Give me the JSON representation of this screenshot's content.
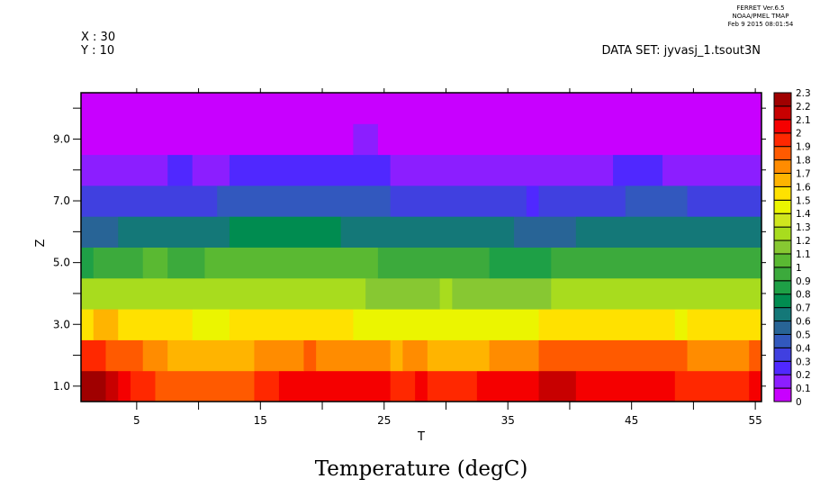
{
  "header": {
    "ferret_version": "FERRET  Ver.6.5",
    "ferret_org": "NOAA/PMEL TMAP",
    "ferret_date": "Feb  9 2015 08:01:54",
    "x_label": "X : 30",
    "y_label": "Y : 10",
    "dataset": "DATA SET: jyvasj_1.tsout3N"
  },
  "chart_data": {
    "type": "heatmap",
    "title": "Temperature (degC)",
    "xlabel": "T",
    "ylabel": "Z",
    "xlim": [
      0.5,
      55.5
    ],
    "ylim": [
      0.5,
      10.5
    ],
    "x_ticks": [
      "5",
      "15",
      "25",
      "35",
      "45",
      "55"
    ],
    "y_ticks": [
      "1.0",
      "3.0",
      "5.0",
      "7.0",
      "9.0"
    ],
    "x_tick_values": [
      5,
      15,
      25,
      35,
      45,
      55
    ],
    "y_tick_values": [
      1,
      3,
      5,
      7,
      9
    ],
    "levels": [
      "0",
      "0.1",
      "0.2",
      "0.3",
      "0.4",
      "0.5",
      "0.6",
      "0.7",
      "0.8",
      "0.9",
      "1",
      "1.1",
      "1.2",
      "1.3",
      "1.4",
      "1.5",
      "1.6",
      "1.7",
      "1.8",
      "1.9",
      "2",
      "2.1",
      "2.2",
      "2.3"
    ],
    "colors": [
      "#c800ff",
      "#8c1eff",
      "#5028ff",
      "#4040e0",
      "#3258be",
      "#286496",
      "#147878",
      "#008c50",
      "#1ea046",
      "#3caa3c",
      "#5ab932",
      "#87c832",
      "#a8dc1e",
      "#d0e61e",
      "#ebf500",
      "#ffe100",
      "#ffb400",
      "#ff8c00",
      "#ff5a00",
      "#ff2800",
      "#f50000",
      "#c80000",
      "#a00000"
    ],
    "legend": "right",
    "rows_note": "each row: runs of [T_start, T_end, value] at Z",
    "rows": [
      {
        "z": 1,
        "runs": [
          [
            1,
            2,
            2.25
          ],
          [
            3,
            3,
            2.15
          ],
          [
            4,
            4,
            2.05
          ],
          [
            5,
            6,
            1.95
          ],
          [
            7,
            14,
            1.85
          ],
          [
            15,
            16,
            1.95
          ],
          [
            17,
            25,
            2.05
          ],
          [
            26,
            27,
            1.95
          ],
          [
            28,
            28,
            2.05
          ],
          [
            29,
            32,
            1.95
          ],
          [
            33,
            37,
            2.05
          ],
          [
            38,
            40,
            2.15
          ],
          [
            41,
            48,
            2.05
          ],
          [
            49,
            54,
            1.95
          ],
          [
            55,
            55,
            2.05
          ]
        ]
      },
      {
        "z": 2,
        "runs": [
          [
            1,
            2,
            1.95
          ],
          [
            3,
            5,
            1.85
          ],
          [
            6,
            7,
            1.75
          ],
          [
            8,
            14,
            1.65
          ],
          [
            15,
            18,
            1.75
          ],
          [
            19,
            19,
            1.85
          ],
          [
            20,
            25,
            1.75
          ],
          [
            26,
            26,
            1.65
          ],
          [
            27,
            28,
            1.75
          ],
          [
            29,
            33,
            1.65
          ],
          [
            34,
            37,
            1.75
          ],
          [
            38,
            49,
            1.85
          ],
          [
            50,
            54,
            1.75
          ],
          [
            55,
            55,
            1.85
          ]
        ]
      },
      {
        "z": 3,
        "runs": [
          [
            1,
            1,
            1.55
          ],
          [
            2,
            3,
            1.65
          ],
          [
            4,
            9,
            1.55
          ],
          [
            10,
            12,
            1.45
          ],
          [
            13,
            22,
            1.55
          ],
          [
            23,
            37,
            1.45
          ],
          [
            38,
            48,
            1.55
          ],
          [
            49,
            49,
            1.45
          ],
          [
            50,
            55,
            1.55
          ]
        ]
      },
      {
        "z": 4,
        "runs": [
          [
            1,
            23,
            1.25
          ],
          [
            24,
            29,
            1.15
          ],
          [
            30,
            30,
            1.25
          ],
          [
            31,
            38,
            1.15
          ],
          [
            39,
            55,
            1.25
          ]
        ]
      },
      {
        "z": 5,
        "runs": [
          [
            1,
            1,
            0.85
          ],
          [
            2,
            5,
            0.95
          ],
          [
            6,
            7,
            1.05
          ],
          [
            8,
            10,
            0.95
          ],
          [
            11,
            24,
            1.05
          ],
          [
            25,
            33,
            0.95
          ],
          [
            34,
            38,
            0.85
          ],
          [
            39,
            55,
            0.95
          ]
        ]
      },
      {
        "z": 6,
        "runs": [
          [
            1,
            3,
            0.55
          ],
          [
            4,
            12,
            0.65
          ],
          [
            13,
            21,
            0.75
          ],
          [
            22,
            35,
            0.65
          ],
          [
            36,
            40,
            0.55
          ],
          [
            41,
            55,
            0.65
          ]
        ]
      },
      {
        "z": 7,
        "runs": [
          [
            1,
            11,
            0.35
          ],
          [
            12,
            25,
            0.45
          ],
          [
            26,
            36,
            0.35
          ],
          [
            37,
            37,
            0.25
          ],
          [
            38,
            44,
            0.35
          ],
          [
            45,
            49,
            0.45
          ],
          [
            50,
            55,
            0.35
          ]
        ]
      },
      {
        "z": 8,
        "runs": [
          [
            1,
            7,
            0.15
          ],
          [
            8,
            9,
            0.25
          ],
          [
            10,
            12,
            0.15
          ],
          [
            13,
            25,
            0.25
          ],
          [
            26,
            43,
            0.15
          ],
          [
            44,
            47,
            0.25
          ],
          [
            48,
            55,
            0.15
          ]
        ]
      },
      {
        "z": 9,
        "runs": [
          [
            1,
            22,
            0.05
          ],
          [
            23,
            24,
            0.15
          ],
          [
            25,
            55,
            0.05
          ]
        ]
      },
      {
        "z": 10,
        "runs": [
          [
            1,
            55,
            0.05
          ]
        ]
      }
    ]
  }
}
